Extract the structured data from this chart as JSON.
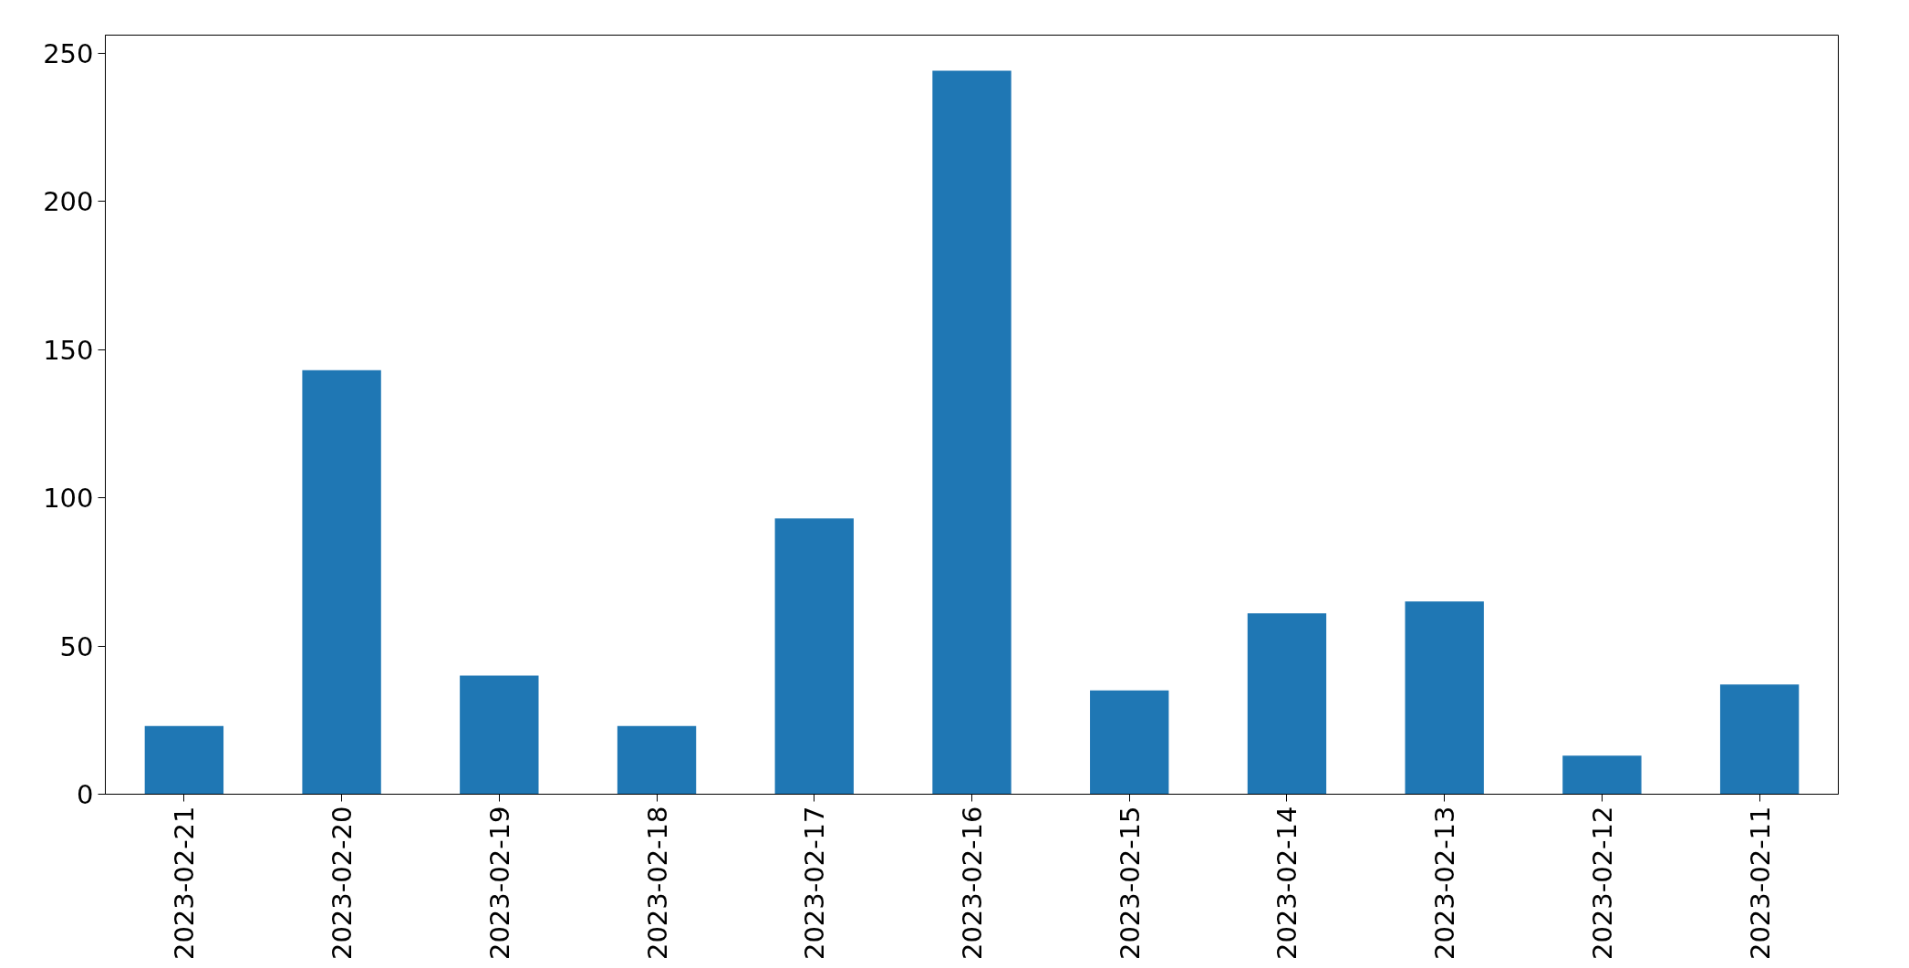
{
  "chart_data": {
    "type": "bar",
    "categories": [
      "2023-02-21",
      "2023-02-20",
      "2023-02-19",
      "2023-02-18",
      "2023-02-17",
      "2023-02-16",
      "2023-02-15",
      "2023-02-14",
      "2023-02-13",
      "2023-02-12",
      "2023-02-11"
    ],
    "values": [
      23,
      143,
      40,
      23,
      93,
      244,
      35,
      61,
      65,
      13,
      37
    ],
    "color": "#1f77b4",
    "ylim": [
      0,
      256
    ],
    "yticks": [
      0,
      50,
      100,
      150,
      200,
      250
    ]
  }
}
